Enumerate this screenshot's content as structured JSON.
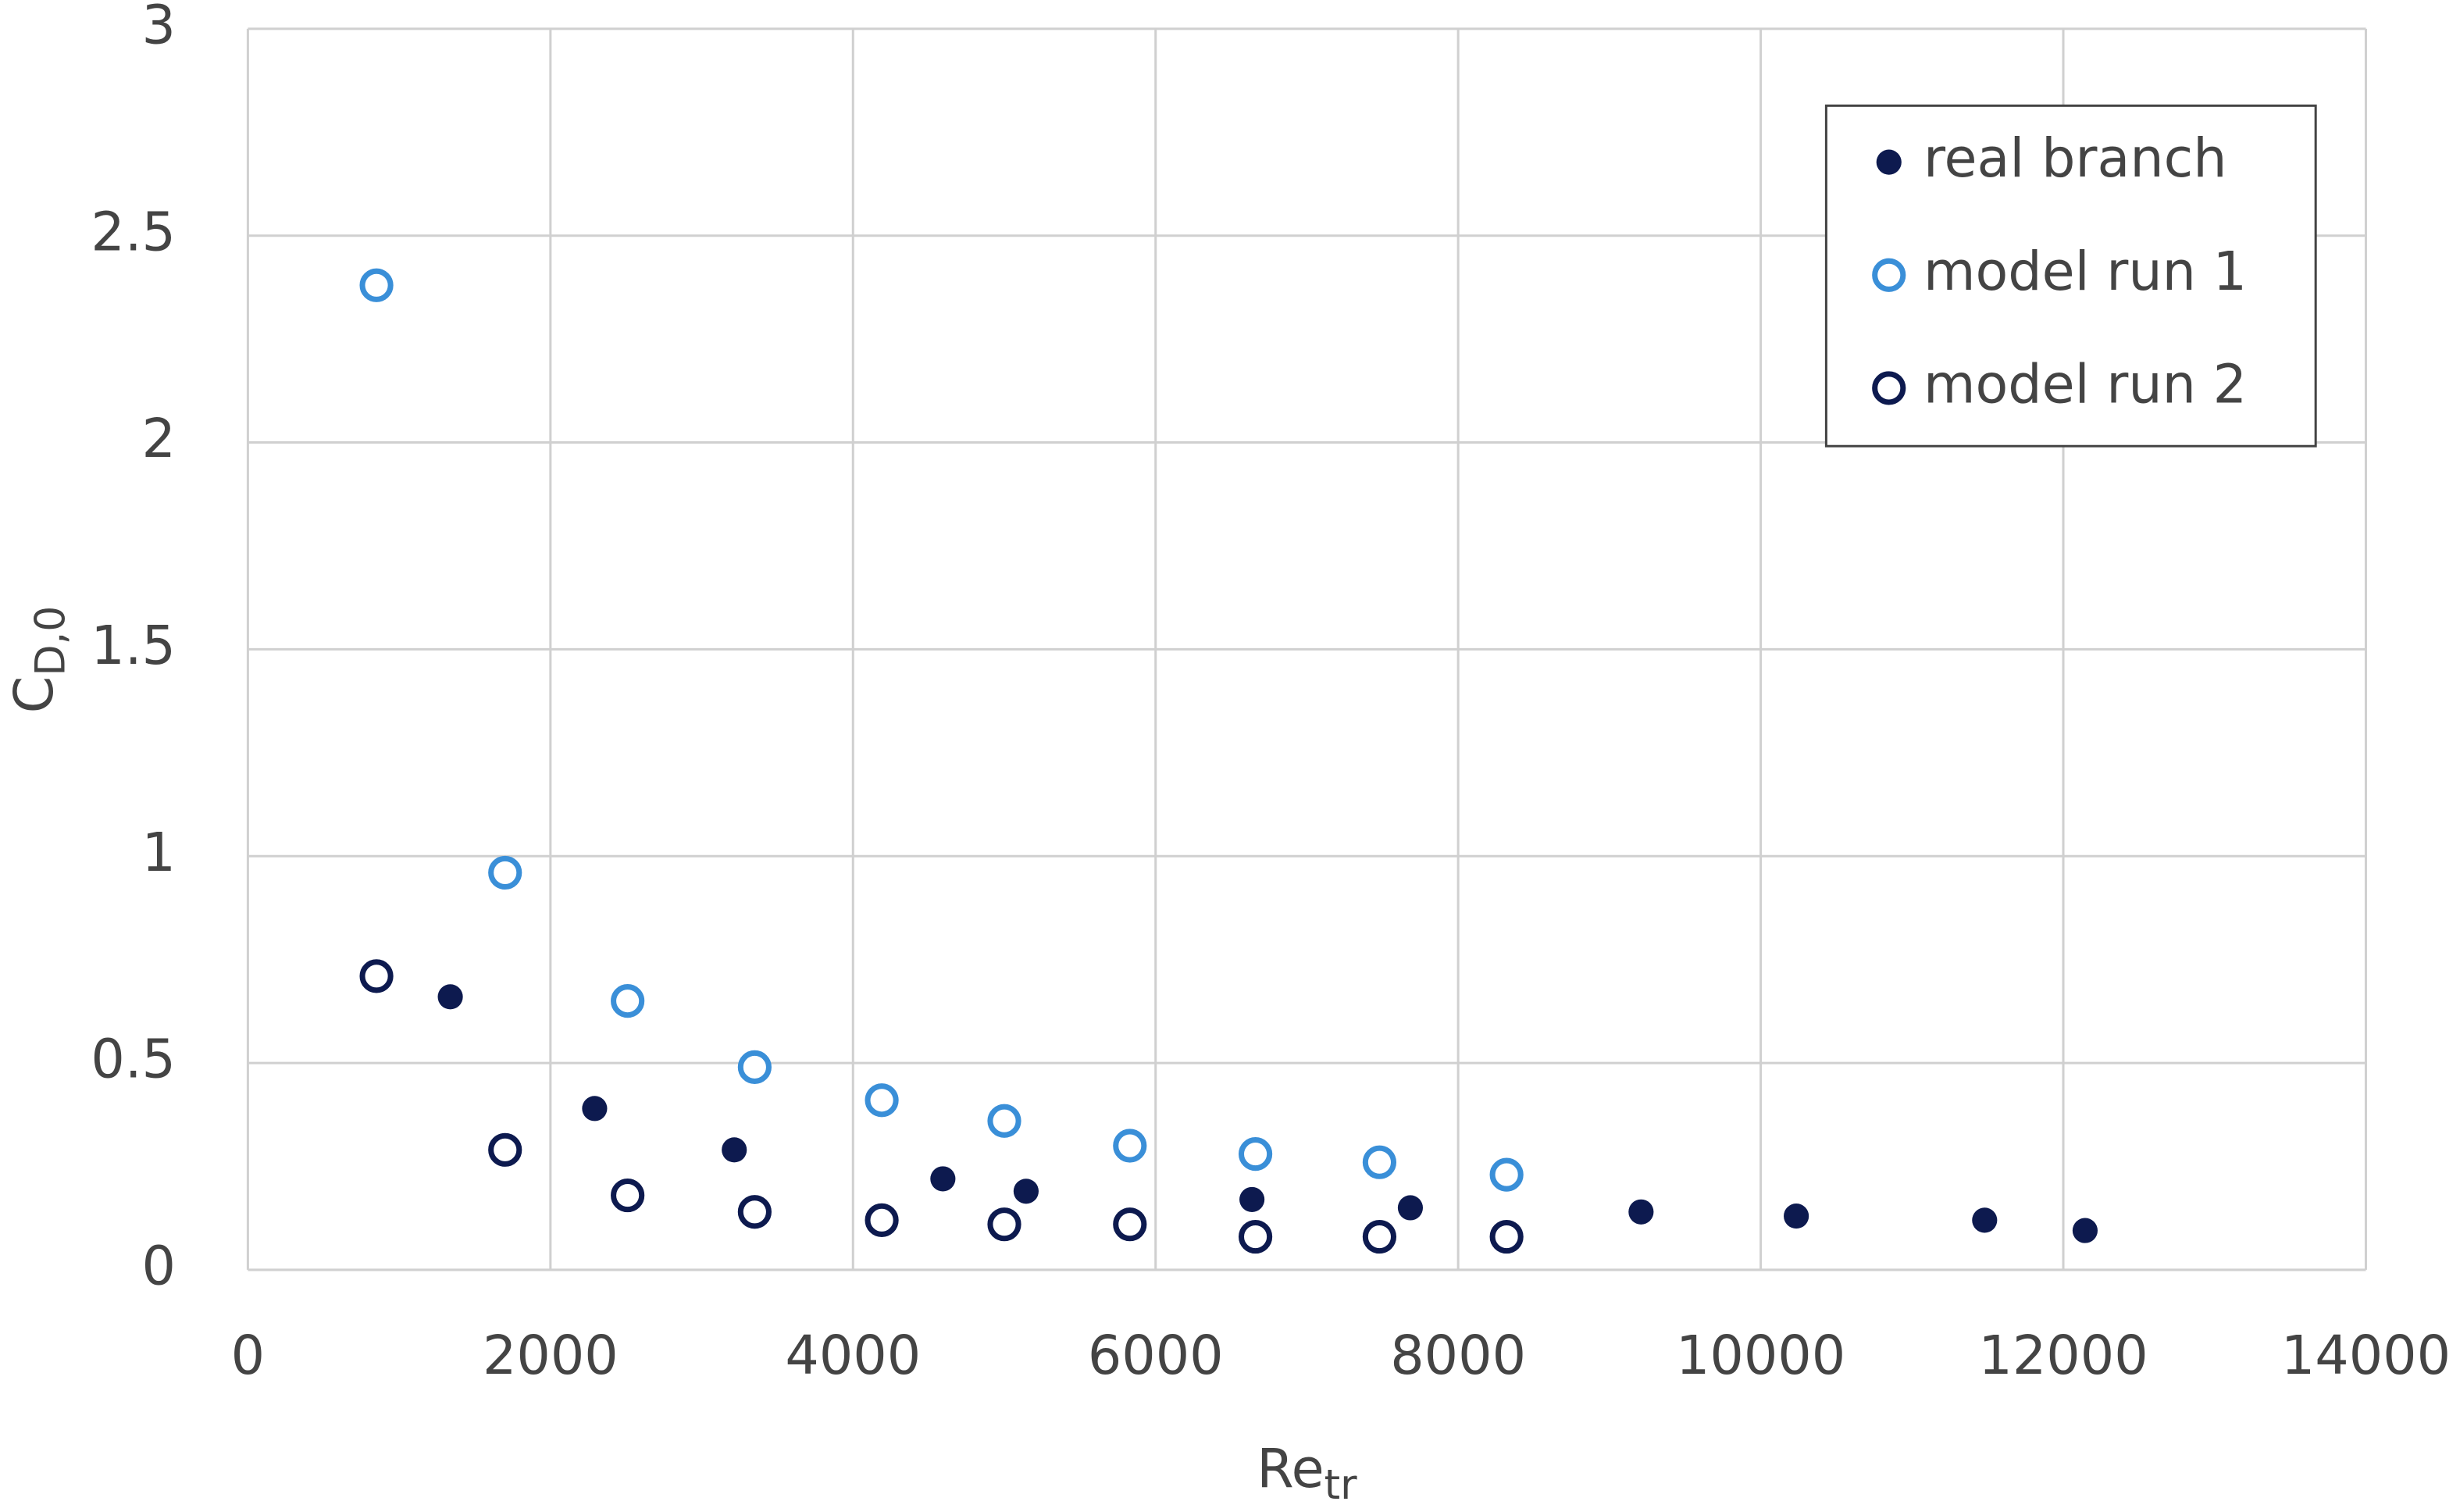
{
  "chart_data": {
    "type": "scatter",
    "xlabel": {
      "text": "Re",
      "sub": "tr"
    },
    "ylabel": {
      "text": "C",
      "sub": "D,0"
    },
    "xlim": [
      0,
      14000
    ],
    "xticks": [
      0,
      2000,
      4000,
      6000,
      8000,
      10000,
      12000,
      14000
    ],
    "ylim": [
      0,
      3
    ],
    "yticks": [
      0,
      0.5,
      1,
      1.5,
      2,
      2.5,
      3
    ],
    "grid": true,
    "legend": "top-right",
    "series": [
      {
        "name": "real branch",
        "color": "#0d1a4f",
        "marker": "filled",
        "x": [
          1338,
          2292,
          3215,
          4594,
          5144,
          6637,
          7684,
          9209,
          10235,
          11480,
          12144
        ],
        "values": [
          0.66,
          0.39,
          0.29,
          0.22,
          0.19,
          0.17,
          0.15,
          0.14,
          0.13,
          0.12,
          0.095
        ]
      },
      {
        "name": "model run 1",
        "color": "#3a8fd8",
        "marker": "open",
        "x": [
          850,
          1700,
          2510,
          3350,
          4190,
          5000,
          5830,
          6660,
          7480,
          8320
        ],
        "values": [
          2.38,
          0.96,
          0.65,
          0.49,
          0.41,
          0.36,
          0.3,
          0.28,
          0.26,
          0.23
        ]
      },
      {
        "name": "model run 2",
        "color": "#0d1a4f",
        "marker": "open",
        "x": [
          850,
          1700,
          2510,
          3350,
          4190,
          5000,
          5830,
          6660,
          7480,
          8320
        ],
        "values": [
          0.71,
          0.29,
          0.18,
          0.14,
          0.12,
          0.11,
          0.11,
          0.08,
          0.08,
          0.08
        ]
      }
    ]
  }
}
